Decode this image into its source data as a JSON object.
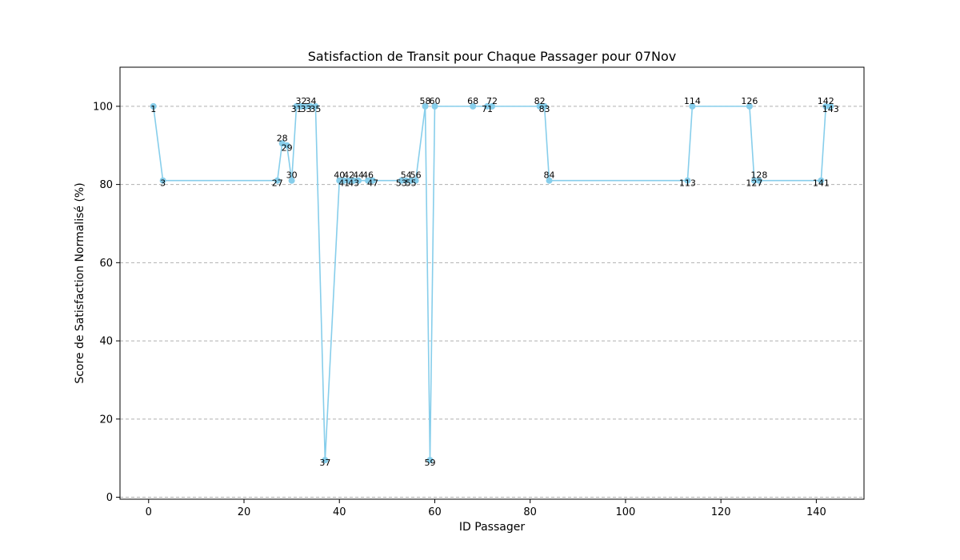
{
  "chart_data": {
    "type": "line",
    "title": "Satisfaction de Transit pour Chaque Passager pour 07Nov",
    "xlabel": "ID Passager",
    "ylabel": "Score de Satisfaction Normalisé (%)",
    "xlim": [
      -6,
      150
    ],
    "ylim": [
      -0.5,
      110
    ],
    "xticks": [
      0,
      20,
      40,
      60,
      80,
      100,
      120,
      140
    ],
    "yticks": [
      0,
      20,
      40,
      60,
      80,
      100
    ],
    "grid": "horizontal dashed",
    "legend": "none",
    "line_color": "#87ceeb",
    "grid_color": "#b0b0b0",
    "series": [
      {
        "x": [
          1,
          3,
          27,
          28,
          29,
          30,
          31,
          32,
          33,
          34,
          35,
          37,
          40,
          41,
          42,
          43,
          44,
          46,
          47,
          53,
          54,
          55,
          56,
          58,
          59,
          60,
          68,
          71,
          72,
          82,
          83,
          84,
          113,
          114,
          126,
          127,
          128,
          141,
          142,
          143
        ],
        "y": [
          100,
          81,
          81,
          90.5,
          90,
          81,
          100,
          100,
          100,
          100,
          100,
          9.5,
          81,
          81,
          81,
          81,
          81,
          81,
          81,
          81,
          81,
          81,
          81,
          100,
          9.5,
          100,
          100,
          100,
          100,
          100,
          100,
          81,
          81,
          100,
          100,
          81,
          81,
          81,
          100,
          100
        ],
        "labels": [
          "1",
          "3",
          "27",
          "28",
          "29",
          "30",
          "31",
          "32",
          "33",
          "34",
          "35",
          "37",
          "40",
          "41",
          "42",
          "43",
          "44",
          "46",
          "47",
          "53",
          "54",
          "55",
          "56",
          "58",
          "59",
          "60",
          "68",
          "71",
          "72",
          "82",
          "83",
          "84",
          "113",
          "114",
          "126",
          "127",
          "128",
          "141",
          "142",
          "143"
        ],
        "label_pos": [
          "below",
          "below",
          "below",
          "above",
          "below",
          "above",
          "below",
          "above",
          "below",
          "above",
          "below",
          "below",
          "above",
          "below",
          "above",
          "below",
          "above",
          "above",
          "below",
          "below",
          "above",
          "below",
          "above",
          "above",
          "below",
          "above",
          "above",
          "below",
          "above",
          "above",
          "below",
          "above",
          "below",
          "above",
          "above",
          "below",
          "above",
          "below",
          "above",
          "below"
        ]
      }
    ]
  }
}
